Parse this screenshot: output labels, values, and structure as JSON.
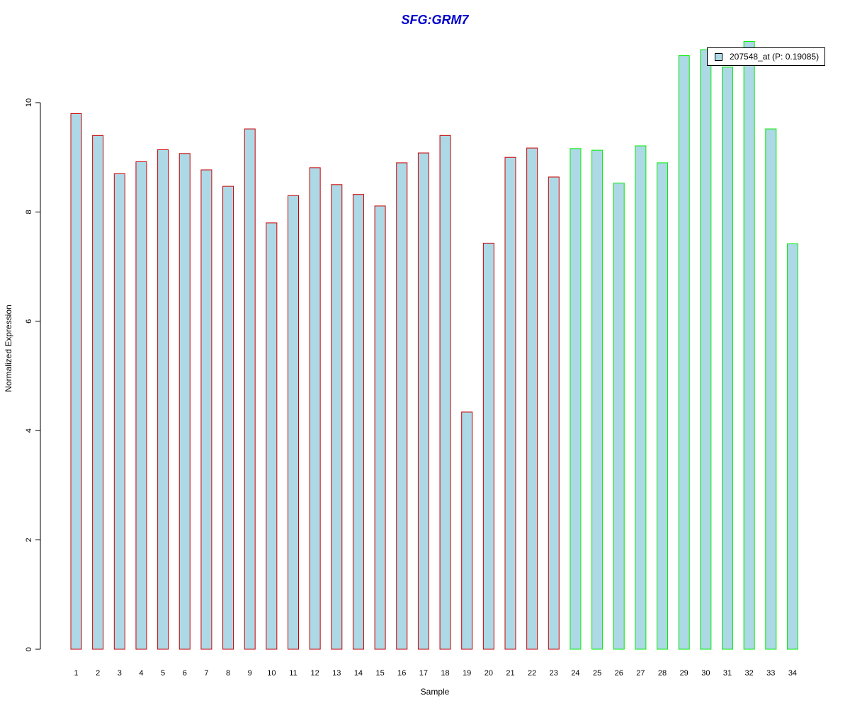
{
  "chart_data": {
    "type": "bar",
    "title": "SFG:GRM7",
    "xlabel": "Sample",
    "ylabel": "Normalized Expression",
    "categories": [
      "1",
      "2",
      "3",
      "4",
      "5",
      "6",
      "7",
      "8",
      "9",
      "10",
      "11",
      "12",
      "13",
      "14",
      "15",
      "16",
      "17",
      "18",
      "19",
      "20",
      "21",
      "22",
      "23",
      "24",
      "25",
      "26",
      "27",
      "28",
      "29",
      "30",
      "31",
      "32",
      "33",
      "34"
    ],
    "series": [
      {
        "name": "207548_at (P: 0.19085)",
        "values": [
          9.8,
          9.4,
          8.7,
          8.92,
          9.14,
          9.07,
          8.77,
          8.47,
          9.52,
          7.8,
          8.3,
          8.81,
          8.5,
          8.32,
          8.11,
          8.9,
          9.08,
          9.4,
          4.34,
          7.43,
          9.0,
          9.17,
          8.64,
          9.16,
          9.13,
          8.53,
          9.21,
          8.9,
          10.86,
          10.97,
          10.65,
          11.12,
          9.52,
          7.42
        ]
      }
    ],
    "groups": [
      1,
      1,
      1,
      1,
      1,
      1,
      1,
      1,
      1,
      1,
      1,
      1,
      1,
      1,
      1,
      1,
      1,
      1,
      1,
      1,
      1,
      1,
      1,
      2,
      2,
      2,
      2,
      2,
      2,
      2,
      2,
      2,
      2,
      2
    ],
    "yticks": [
      0,
      2,
      4,
      6,
      8,
      10
    ],
    "ylim": [
      0,
      11.15
    ],
    "grid": false,
    "legend_position": "top-right",
    "colors": {
      "title": "#0000cc",
      "bar_fill": "#add8e6",
      "group1_border": "#cc0000",
      "group2_border": "#00ee00",
      "axis": "#000000"
    }
  }
}
